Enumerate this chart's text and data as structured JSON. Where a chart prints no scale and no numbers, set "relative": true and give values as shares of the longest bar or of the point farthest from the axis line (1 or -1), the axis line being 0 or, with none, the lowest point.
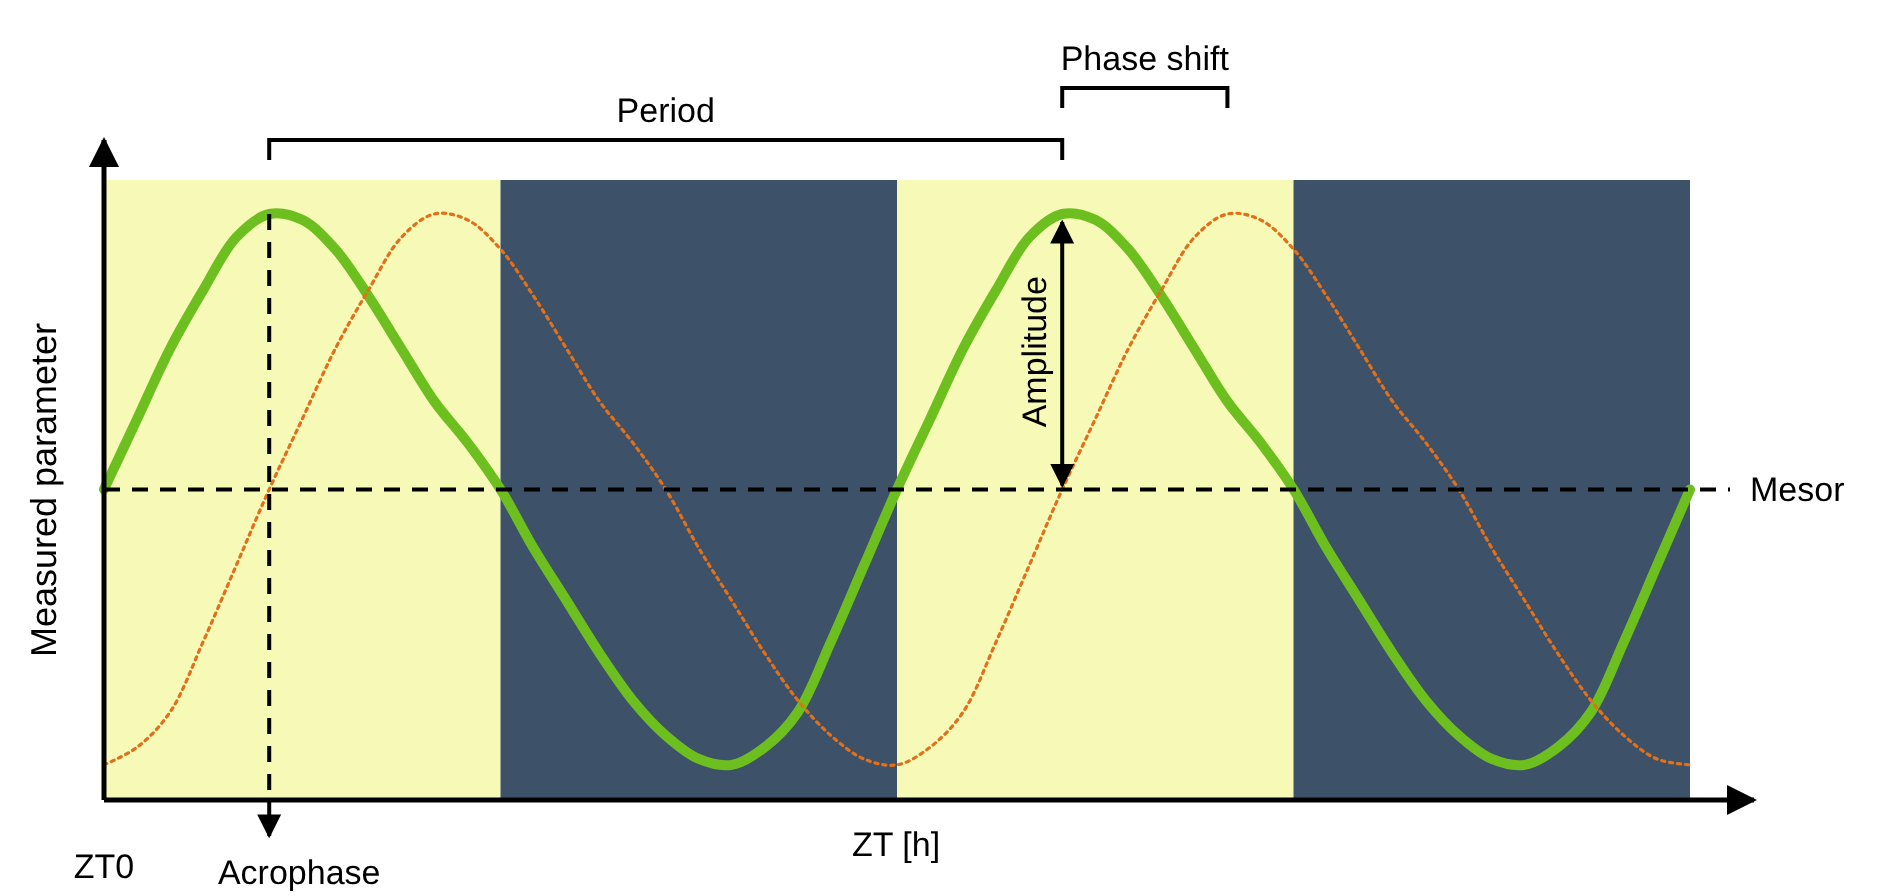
{
  "chart_data": {
    "type": "line",
    "relative": true,
    "xlabel": "ZT [h]",
    "ylabel": "Measured parameter",
    "categories": [
      null,
      null,
      null,
      null,
      null,
      null,
      null,
      null,
      null,
      null,
      null,
      null,
      null,
      null,
      null,
      null,
      null,
      null,
      null,
      null,
      null,
      null,
      null,
      null,
      null,
      null,
      null,
      null,
      null,
      null,
      null,
      null,
      null,
      null,
      null,
      null,
      null,
      null,
      null,
      null,
      null,
      null,
      null,
      null,
      null,
      null,
      null,
      null,
      null
    ],
    "series": [
      {
        "color": "#6cbf1e",
        "line_style": "solid",
        "values": [
          0.53,
          0.65,
          0.77,
          0.87,
          0.96,
          1.0,
          0.99,
          0.94,
          0.86,
          0.77,
          0.68,
          0.61,
          0.53,
          0.43,
          0.34,
          0.25,
          0.17,
          0.11,
          0.07,
          0.06,
          0.09,
          0.15,
          0.27,
          0.4,
          0.53,
          0.65,
          0.77,
          0.87,
          0.96,
          1.0,
          0.99,
          0.94,
          0.86,
          0.77,
          0.68,
          0.61,
          0.53,
          0.43,
          0.34,
          0.25,
          0.17,
          0.11,
          0.07,
          0.06,
          0.09,
          0.15,
          0.27,
          0.4,
          0.53
        ]
      },
      {
        "color": "#e0701a",
        "line_style": "dotted",
        "values": [
          0.06,
          0.09,
          0.15,
          0.27,
          0.4,
          0.53,
          0.65,
          0.77,
          0.87,
          0.96,
          1.0,
          0.99,
          0.94,
          0.86,
          0.77,
          0.68,
          0.61,
          0.53,
          0.43,
          0.34,
          0.25,
          0.17,
          0.11,
          0.07,
          0.06,
          0.09,
          0.15,
          0.27,
          0.4,
          0.53,
          0.65,
          0.77,
          0.87,
          0.96,
          1.0,
          0.99,
          0.94,
          0.86,
          0.77,
          0.68,
          0.61,
          0.53,
          0.43,
          0.34,
          0.25,
          0.17,
          0.11,
          0.07,
          0.06
        ]
      }
    ],
    "ref_lines": [
      {
        "axis": "y",
        "value": 0.53,
        "label": "Mesor",
        "line_style": "dashed"
      }
    ],
    "annotations": [
      "Period",
      "Phase shift",
      "Amplitude",
      "ZT0",
      "Acrophase"
    ],
    "marker": "none"
  }
}
